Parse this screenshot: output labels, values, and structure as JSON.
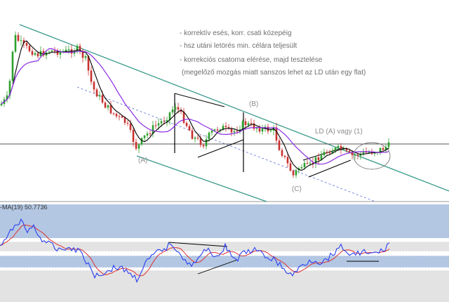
{
  "chart_data": [
    {
      "type": "candlestick",
      "title": "",
      "colors": {
        "up": "#2ca02c",
        "down": "#c8312f",
        "ma_fast": "#000000",
        "ma_slow": "#8a2be2",
        "channel": "#3a9a8c",
        "horizontal": "#555555"
      },
      "annotations": [
        "- korrektív esés, korr. csati közepéig",
        "- hsz utáni letörés min. célára teljesült",
        "- korrekciós csatorna elérése, majd tesztelése",
        "(megelőző mozgás miatt sanszos lehet az LD után egy flat)"
      ],
      "wave_labels": [
        "(A)",
        "(B)",
        "(C)",
        "LD (A) vagy (1)"
      ],
      "grid": false
    },
    {
      "type": "line",
      "indicator_label": "-MA(19) 50.7736",
      "last_value": 50.7736,
      "colors": {
        "rsi": "#2a3ff0",
        "ma": "#e03030",
        "band_blue": "#b3c7e3",
        "band_gray": "#e3e3e3"
      },
      "grid": false
    }
  ]
}
